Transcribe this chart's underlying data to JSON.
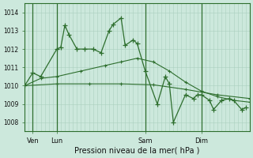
{
  "background_color": "#cce8dc",
  "grid_color": "#aacfbf",
  "line_color": "#2d6e2d",
  "marker_color": "#2d6e2d",
  "title": "Pression niveau de la mer( hPa )",
  "ylim": [
    1007.5,
    1014.5
  ],
  "yticks": [
    1008,
    1009,
    1010,
    1011,
    1012,
    1013,
    1014
  ],
  "xlim": [
    0,
    56
  ],
  "day_labels": [
    "Ven",
    "Lun",
    "Sam",
    "Dim"
  ],
  "day_positions": [
    2,
    8,
    30,
    44
  ],
  "series1": [
    [
      0,
      1010.0
    ],
    [
      2,
      1010.7
    ],
    [
      4,
      1010.5
    ],
    [
      8,
      1012.0
    ],
    [
      9,
      1012.1
    ],
    [
      10,
      1013.3
    ],
    [
      11,
      1012.8
    ],
    [
      13,
      1012.0
    ],
    [
      15,
      1012.0
    ],
    [
      17,
      1012.0
    ],
    [
      19,
      1011.8
    ],
    [
      21,
      1013.0
    ],
    [
      22,
      1013.35
    ],
    [
      24,
      1013.7
    ],
    [
      25,
      1012.2
    ],
    [
      27,
      1012.5
    ],
    [
      28,
      1012.3
    ],
    [
      30,
      1010.8
    ],
    [
      33,
      1009.0
    ],
    [
      35,
      1010.5
    ],
    [
      36,
      1010.1
    ],
    [
      37,
      1008.0
    ],
    [
      40,
      1009.5
    ],
    [
      42,
      1009.3
    ],
    [
      43,
      1009.5
    ],
    [
      44,
      1009.5
    ],
    [
      46,
      1009.2
    ],
    [
      47,
      1008.7
    ],
    [
      49,
      1009.2
    ],
    [
      51,
      1009.3
    ],
    [
      52,
      1009.2
    ],
    [
      54,
      1008.7
    ],
    [
      55,
      1008.8
    ]
  ],
  "series2": [
    [
      0,
      1010.0
    ],
    [
      4,
      1010.4
    ],
    [
      8,
      1010.5
    ],
    [
      14,
      1010.8
    ],
    [
      20,
      1011.1
    ],
    [
      24,
      1011.3
    ],
    [
      28,
      1011.5
    ],
    [
      32,
      1011.3
    ],
    [
      36,
      1010.8
    ],
    [
      40,
      1010.2
    ],
    [
      44,
      1009.7
    ],
    [
      48,
      1009.4
    ],
    [
      52,
      1009.2
    ],
    [
      56,
      1009.1
    ]
  ],
  "series3": [
    [
      0,
      1010.0
    ],
    [
      8,
      1010.1
    ],
    [
      16,
      1010.1
    ],
    [
      24,
      1010.1
    ],
    [
      32,
      1010.05
    ],
    [
      40,
      1009.8
    ],
    [
      48,
      1009.5
    ],
    [
      56,
      1009.3
    ]
  ]
}
